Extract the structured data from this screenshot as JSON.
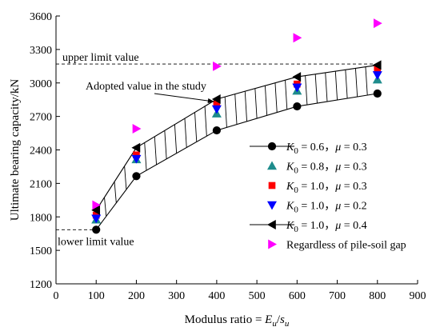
{
  "chart_data": {
    "type": "scatter",
    "xlabel": {
      "prefix": "Modulus ratio = ",
      "num": "E",
      "num_sub": "u",
      "sep": "/",
      "den": "s",
      "den_sub": "u"
    },
    "ylabel": "Ultimate bearing capacity/kN",
    "xlim": [
      0,
      900
    ],
    "ylim": [
      1200,
      3600
    ],
    "x_ticks": [
      0,
      100,
      200,
      300,
      400,
      500,
      600,
      700,
      800,
      900
    ],
    "y_ticks": [
      1200,
      1500,
      1800,
      2100,
      2400,
      2700,
      3000,
      3300,
      3600
    ],
    "legend_position": "center-right",
    "series": [
      {
        "legend": {
          "k_sym": "K",
          "k_sub": "0",
          "k_val": " = 0.6，",
          "mu_sym": "μ",
          "mu_val": " = 0.3"
        },
        "marker": "circle",
        "color": "#000000",
        "x": [
          100,
          200,
          400,
          600,
          800
        ],
        "y": [
          1685,
          2165,
          2575,
          2790,
          2905
        ]
      },
      {
        "legend": {
          "k_sym": "K",
          "k_sub": "0",
          "k_val": " = 0.8，",
          "mu_sym": "μ",
          "mu_val": " = 0.3"
        },
        "marker": "triangle-up",
        "color": "#1e8c8c",
        "x": [
          100,
          200,
          400,
          600,
          800
        ],
        "y": [
          1775,
          2315,
          2725,
          2930,
          3030
        ]
      },
      {
        "legend": {
          "k_sym": "K",
          "k_sub": "0",
          "k_val": " = 1.0，",
          "mu_sym": "μ",
          "mu_val": " = 0.3"
        },
        "marker": "square",
        "color": "#ff0000",
        "x": [
          100,
          200,
          400,
          600,
          800
        ],
        "y": [
          1815,
          2355,
          2810,
          2990,
          3125
        ]
      },
      {
        "legend": {
          "k_sym": "K",
          "k_sub": "0",
          "k_val": " = 1.0，",
          "mu_sym": "μ",
          "mu_val": " = 0.2"
        },
        "marker": "triangle-down",
        "color": "#0000ff",
        "x": [
          100,
          200,
          400,
          600,
          800
        ],
        "y": [
          1785,
          2320,
          2765,
          2960,
          3070
        ]
      },
      {
        "legend": {
          "k_sym": "K",
          "k_sub": "0",
          "k_val": " = 1.0，",
          "mu_sym": "μ",
          "mu_val": " = 0.4"
        },
        "marker": "triangle-left",
        "color": "#000000",
        "x": [
          100,
          200,
          400,
          600,
          800
        ],
        "y": [
          1860,
          2420,
          2855,
          3055,
          3160
        ]
      },
      {
        "legend": {
          "text": "Regardless of pile-soil gap"
        },
        "marker": "triangle-right",
        "color": "#ff00ff",
        "x": [
          100,
          200,
          400,
          600,
          800
        ],
        "y": [
          1905,
          2590,
          3150,
          3405,
          3535
        ]
      }
    ],
    "band": {
      "between_series": [
        0,
        4
      ]
    },
    "annotations": {
      "upper": {
        "text": "upper limit value",
        "y": 3170
      },
      "lower": {
        "text": "lower limit value",
        "y": 1685
      },
      "adopted": {
        "text": "Adopted value in the study",
        "target_x": 400,
        "target_y": 2840
      }
    }
  }
}
